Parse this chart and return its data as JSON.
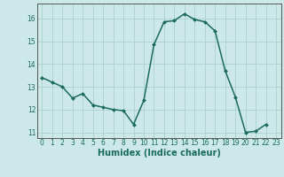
{
  "x": [
    0,
    1,
    2,
    3,
    4,
    5,
    6,
    7,
    8,
    9,
    10,
    11,
    12,
    13,
    14,
    15,
    16,
    17,
    18,
    19,
    20,
    21,
    22,
    23
  ],
  "y": [
    13.4,
    13.2,
    13.0,
    12.5,
    12.7,
    12.2,
    12.1,
    12.0,
    11.95,
    11.35,
    12.4,
    14.85,
    15.85,
    15.9,
    16.2,
    15.95,
    15.85,
    15.45,
    13.7,
    12.55,
    11.0,
    11.05,
    11.35,
    null
  ],
  "ylim": [
    10.75,
    16.65
  ],
  "yticks": [
    11,
    12,
    13,
    14,
    15,
    16
  ],
  "xticks": [
    0,
    1,
    2,
    3,
    4,
    5,
    6,
    7,
    8,
    9,
    10,
    11,
    12,
    13,
    14,
    15,
    16,
    17,
    18,
    19,
    20,
    21,
    22,
    23
  ],
  "xlabel": "Humidex (Indice chaleur)",
  "line_color": "#1a6b5a",
  "marker": "D",
  "marker_size": 2.0,
  "bg_color": "#cce8e8",
  "grid_color": "#afd4d0",
  "line_width": 1.1,
  "tick_fontsize": 5.5,
  "xlabel_fontsize": 7.0
}
